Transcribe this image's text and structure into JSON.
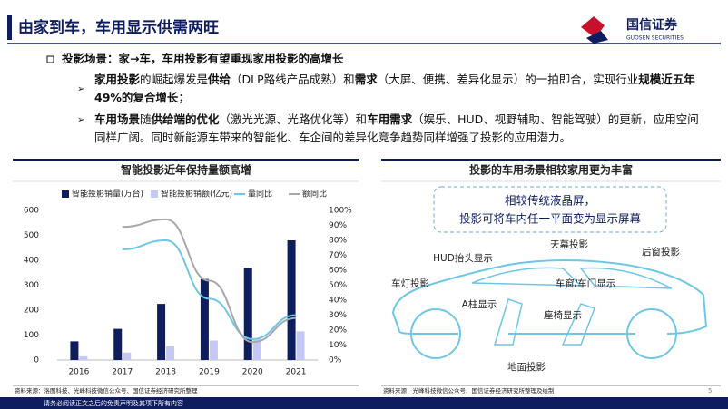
{
  "header": {
    "title": "由家到车，车用显示供需两旺",
    "logo": "国信证券",
    "logo_sub": "GUOSEN SECURITIES"
  },
  "bullet": "投影场景：家→车，车用投影有望重现家用投影的高增长",
  "sub_bullets": [
    {
      "runs": [
        {
          "text": "家用投影",
          "bold": true
        },
        {
          "text": "的崛起爆发是",
          "bold": false
        },
        {
          "text": "供给",
          "bold": true
        },
        {
          "text": "（DLP路线产品成熟）和",
          "bold": false
        },
        {
          "text": "需求",
          "bold": true
        },
        {
          "text": "（大屏、便携、差异化显示）的一拍即合，实现行业",
          "bold": false
        },
        {
          "text": "规模近五年49%的复合增长",
          "bold": true
        },
        {
          "text": "；",
          "bold": false
        }
      ]
    },
    {
      "runs": [
        {
          "text": "车用场景",
          "bold": true
        },
        {
          "text": "随",
          "bold": false
        },
        {
          "text": "供给端的优化",
          "bold": true
        },
        {
          "text": "（激光光源、光路优化等）和",
          "bold": false
        },
        {
          "text": "车用需求",
          "bold": true
        },
        {
          "text": "（娱乐、HUD、视野辅助、智能驾驶）的更新，应用空间同样广阔。同时新能源车带来的智能化、车企间的差异化竞争趋势同样增强了投影的应用潜力。",
          "bold": false
        }
      ]
    }
  ],
  "chart_data": {
    "type": "bar",
    "title": "智能投影近年保持量额高增",
    "categories": [
      "2016",
      "2017",
      "2018",
      "2019",
      "2020",
      "2021"
    ],
    "series": [
      {
        "name": "智能投影销量(万台)",
        "color": "#0d1d5e",
        "type": "bar",
        "values": [
          75,
          125,
          225,
          325,
          370,
          480
        ]
      },
      {
        "name": "智能投影销额(亿元)",
        "color": "#c5c8f2",
        "type": "bar",
        "values": [
          15,
          30,
          55,
          78,
          85,
          115
        ]
      },
      {
        "name": "量同比",
        "color": "#6fc6e6",
        "type": "line",
        "axis": "y2",
        "values": [
          null,
          74,
          80,
          41,
          14,
          30
        ]
      },
      {
        "name": "额同比",
        "color": "#a8a8a8",
        "type": "line",
        "axis": "y2",
        "values": [
          null,
          89,
          94,
          53,
          12,
          28
        ]
      }
    ],
    "ylim": [
      0,
      600
    ],
    "yticks": [
      0,
      100,
      200,
      300,
      400,
      500,
      600
    ],
    "y2lim": [
      0,
      100
    ],
    "y2ticks": [
      {
        "value": 0,
        "label": "0%"
      },
      {
        "value": 10,
        "label": "10%"
      },
      {
        "value": 20,
        "label": "20%"
      },
      {
        "value": 30,
        "label": "30%"
      },
      {
        "value": 40,
        "label": "40%"
      },
      {
        "value": 50,
        "label": "50%"
      },
      {
        "value": 60,
        "label": "60%"
      },
      {
        "value": 70,
        "label": "70%"
      },
      {
        "value": 80,
        "label": "80%"
      },
      {
        "value": 90,
        "label": "90%"
      },
      {
        "value": 100,
        "label": "100%"
      }
    ],
    "source": "资料来源：洛图科技、光峰科技微信公众号、国信证券经济研究所整理"
  },
  "diagram": {
    "title": "投影的车用场景相较家用更为丰富",
    "callout": [
      "相较传统液晶屏，",
      "投影可将车内任一平面变为显示屏幕"
    ],
    "labels": [
      "天幕投影",
      "HUD抬头显示",
      "后窗投影",
      "车灯投影",
      "A柱显示",
      "车窗/车门显示",
      "座椅显示",
      "地面投影"
    ],
    "source": "资料来源：光峰科技微信公众号、国信证券经济研究所整理及绘制"
  },
  "page_number": "5",
  "footer": "请务必阅读正文之后的免责声明及其项下所有内容"
}
